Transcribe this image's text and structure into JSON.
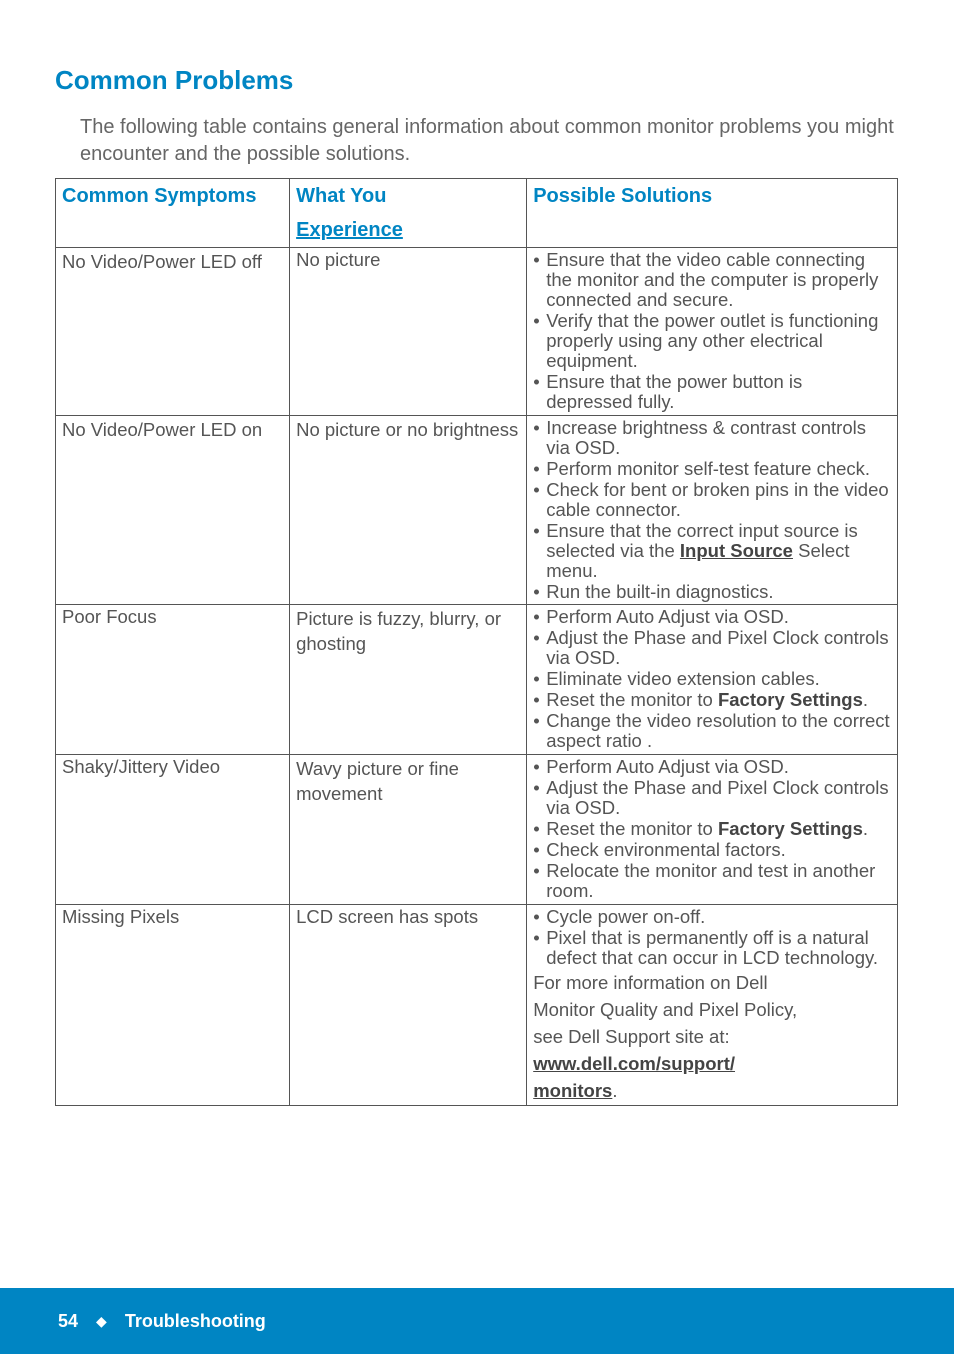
{
  "section_title": "Common Problems",
  "intro": "The following table contains general information about common monitor problems you might encounter and the possible solutions.",
  "headers": {
    "c1": "Common Symptoms",
    "c2a": "What You",
    "c2b": "Experience",
    "c3": "Possible Solutions"
  },
  "rows": [
    {
      "symptom": "No Video/Power LED off",
      "experience": "No picture",
      "solutions_html": "<ul><li>Ensure that the video cable connecting the monitor and the computer is properly connected and secure.</li><li>Verify that the power outlet is functioning properly using any other electrical equipment.</li><li>Ensure that the power button is depressed fully.</li></ul>"
    },
    {
      "symptom": "No Video/Power LED on",
      "experience": "No picture or no brightness",
      "solutions_html": "<ul><li>Increase brightness & contrast controls via OSD.</li><li>Perform monitor self-test feature check.</li><li>Check for bent or broken pins in the video cable connector.</li><li>Ensure that the correct input source is selected via the <b><u>Input Source</u></b> Select menu.</li><li>Run the built-in diagnostics.</li></ul>"
    },
    {
      "symptom": "Poor Focus",
      "experience": "Picture is fuzzy, blurry, or ghosting",
      "solutions_html": "<ul><li>Perform Auto Adjust via OSD.</li><li>Adjust the Phase and Pixel Clock controls via OSD.</li><li>Eliminate video extension cables.</li><li>Reset the monitor to <b>Factory Settings</b>.</li><li>Change the video resolution to the correct aspect ratio .</li></ul>"
    },
    {
      "symptom": "Shaky/Jittery Video",
      "experience": "Wavy picture or fine movement",
      "solutions_html": "<ul><li>Perform Auto Adjust via OSD.</li><li>Adjust the Phase and Pixel Clock controls via OSD.</li><li>Reset the monitor to <b>Factory Settings</b>.</li><li>Check environmental factors.</li><li>Relocate the monitor and test in another room.</li></ul>"
    },
    {
      "symptom": "Missing Pixels",
      "experience": "LCD screen has spots",
      "solutions_html": "<ul><li>Cycle power on-off.</li><li>Pixel that is permanently off is a natural defect that can occur in LCD technology.</li></ul><p>For more information on Dell</p><p>Monitor Quality and Pixel Policy,</p><p>see Dell Support site at:</p><p><b><u>www.dell.com/support/</u></b></p><p><b><u>monitors</u></b>.</p>"
    }
  ],
  "footer": {
    "page_num": "54",
    "diamond": "◆",
    "section": "Troubleshooting"
  },
  "colors": {
    "accent": "#0085c3",
    "text": "#555555",
    "bg": "#ffffff"
  }
}
